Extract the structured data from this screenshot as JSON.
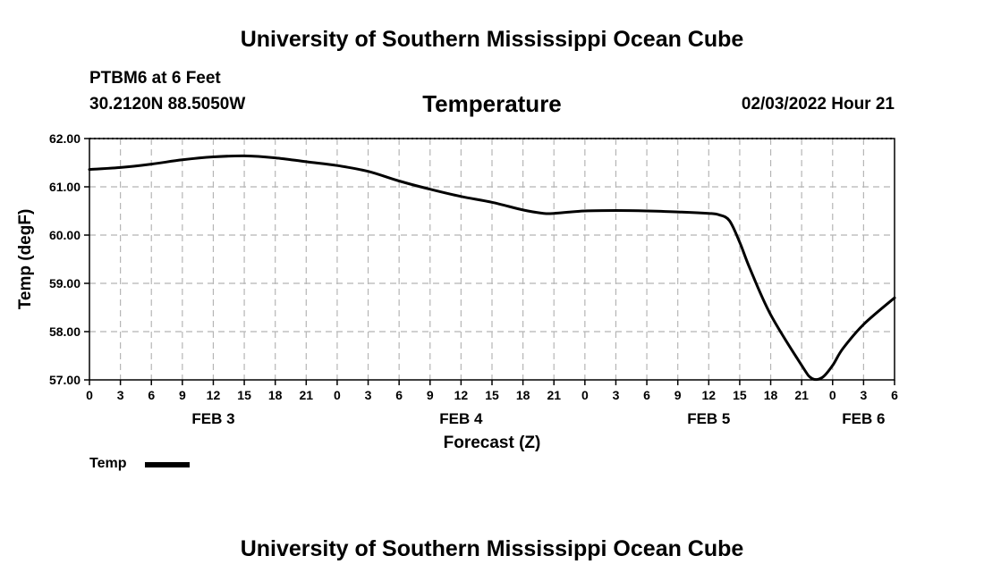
{
  "header": {
    "title": "University of Southern Mississippi Ocean Cube",
    "station": "PTBM6 at 6 Feet",
    "coordinates": "30.2120N  88.5050W",
    "variable": "Temperature",
    "datetime": "02/03/2022 Hour 21"
  },
  "footer": {
    "title": "University of Southern Mississippi Ocean Cube"
  },
  "legend": {
    "label": "Temp"
  },
  "colors": {
    "line": "#000000",
    "grid": "#b5b5b5",
    "axis": "#000000"
  },
  "chart_data": {
    "type": "line",
    "title": "Temperature",
    "xlabel": "Forecast (Z)",
    "ylabel": "Temp (degF)",
    "xlim": [
      0,
      78
    ],
    "ylim": [
      57.0,
      62.0
    ],
    "grid": true,
    "legend_position": "bottom-left",
    "x_ticks": [
      0,
      3,
      6,
      9,
      12,
      15,
      18,
      21,
      24,
      27,
      30,
      33,
      36,
      39,
      42,
      45,
      48,
      51,
      54,
      57,
      60,
      63,
      66,
      69,
      72,
      75,
      78
    ],
    "x_tick_labels": [
      "0",
      "3",
      "6",
      "9",
      "12",
      "15",
      "18",
      "21",
      "0",
      "3",
      "6",
      "9",
      "12",
      "15",
      "18",
      "21",
      "0",
      "3",
      "6",
      "9",
      "12",
      "15",
      "18",
      "21",
      "0",
      "3",
      "6"
    ],
    "y_ticks": [
      57.0,
      58.0,
      59.0,
      60.0,
      61.0,
      62.0
    ],
    "y_tick_labels": [
      "57.00",
      "58.00",
      "59.00",
      "60.00",
      "61.00",
      "62.00"
    ],
    "day_labels": [
      {
        "x": 12,
        "label": "FEB 3"
      },
      {
        "x": 36,
        "label": "FEB 4"
      },
      {
        "x": 60,
        "label": "FEB 5"
      },
      {
        "x": 75,
        "label": "FEB 6"
      }
    ],
    "series": [
      {
        "name": "Temp",
        "x": [
          0,
          3,
          6,
          9,
          12,
          15,
          18,
          21,
          24,
          27,
          30,
          33,
          36,
          39,
          42,
          44,
          45,
          48,
          51,
          54,
          57,
          60,
          61,
          62,
          63,
          64,
          66,
          69,
          70,
          71,
          72,
          73,
          75,
          78
        ],
        "values": [
          61.36,
          61.4,
          61.47,
          61.56,
          61.62,
          61.64,
          61.6,
          61.52,
          61.44,
          61.32,
          61.12,
          60.95,
          60.8,
          60.68,
          60.52,
          60.45,
          60.45,
          60.5,
          60.51,
          60.5,
          60.48,
          60.45,
          60.42,
          60.3,
          59.85,
          59.3,
          58.35,
          57.3,
          57.03,
          57.05,
          57.3,
          57.65,
          58.15,
          58.7
        ]
      }
    ]
  }
}
